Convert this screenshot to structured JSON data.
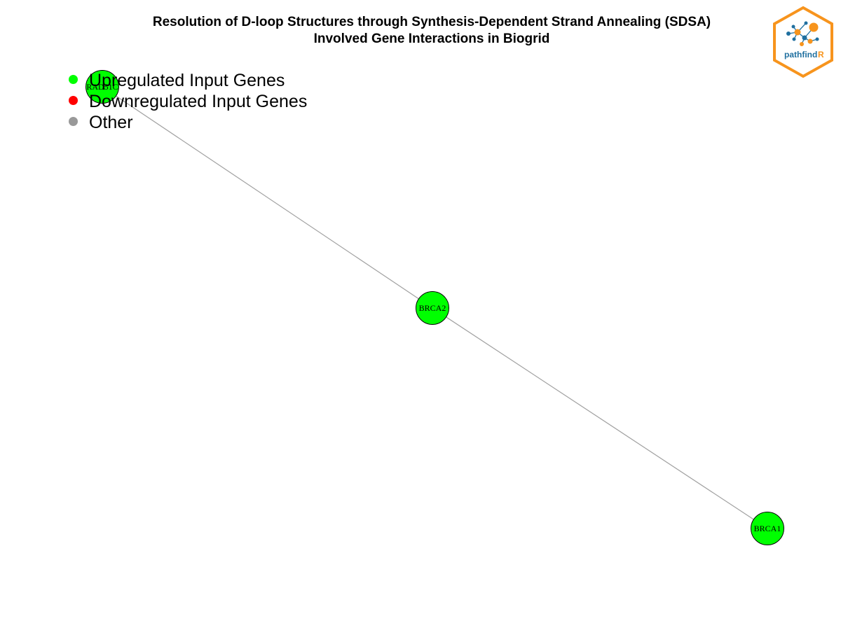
{
  "title": {
    "line1": "Resolution of D-loop Structures through Synthesis-Dependent Strand Annealing (SDSA)",
    "line2": "Involved Gene Interactions in Biogrid"
  },
  "legend": {
    "items": [
      {
        "label": "Upregulated Input Genes",
        "color": "#00ff00"
      },
      {
        "label": "Downregulated Input Genes",
        "color": "#ff0000"
      },
      {
        "label": "Other",
        "color": "#999999"
      }
    ]
  },
  "network": {
    "nodes": [
      {
        "id": "RAD51C",
        "label": "RAD51C",
        "color": "#00ff00"
      },
      {
        "id": "BRCA2",
        "label": "BRCA2",
        "color": "#00ff00"
      },
      {
        "id": "BRCA1",
        "label": "BRCA1",
        "color": "#00ff00"
      }
    ],
    "edges": [
      {
        "source": "RAD51C",
        "target": "BRCA2"
      },
      {
        "source": "BRCA2",
        "target": "BRCA1"
      }
    ],
    "edge_color": "#a0a0a0",
    "node_border_color": "#000000"
  },
  "logo": {
    "text_main": "pathfind",
    "text_accent": "R",
    "border_color": "#f7941d",
    "main_color": "#1f6f9f",
    "accent_color": "#f7941d"
  }
}
